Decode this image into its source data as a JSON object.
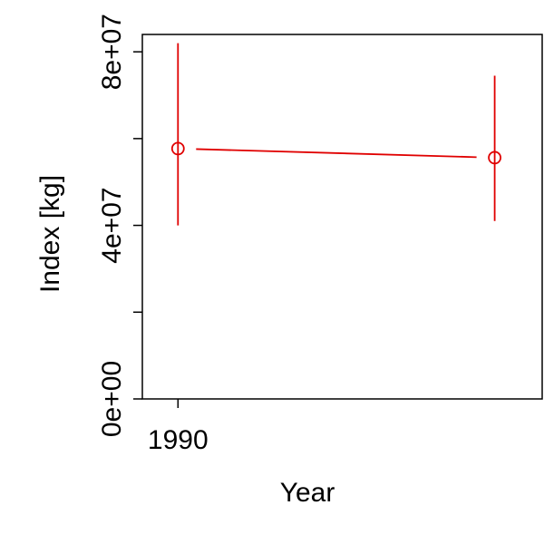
{
  "chart_data": {
    "type": "scatter",
    "title": "",
    "xlabel": "Year",
    "ylabel": "Index [kg]",
    "xlim": [
      1989.1,
      1999.2
    ],
    "ylim": [
      0,
      84000000
    ],
    "x_ticks": [
      {
        "value": 1990,
        "label": "1990"
      }
    ],
    "y_ticks": [
      {
        "value": 0,
        "label": "0e+00"
      },
      {
        "value": 20000000,
        "label": ""
      },
      {
        "value": 40000000,
        "label": "4e+07"
      },
      {
        "value": 60000000,
        "label": ""
      },
      {
        "value": 80000000,
        "label": "8e+07"
      }
    ],
    "grid": false,
    "legend": "none",
    "color": "#e00000",
    "series": [
      {
        "points": [
          {
            "x": 1990,
            "y": 57700000,
            "lower": 40000000,
            "upper": 82000000
          },
          {
            "x": 1998,
            "y": 55600000,
            "lower": 41000000,
            "upper": 74500000
          }
        ]
      }
    ]
  }
}
